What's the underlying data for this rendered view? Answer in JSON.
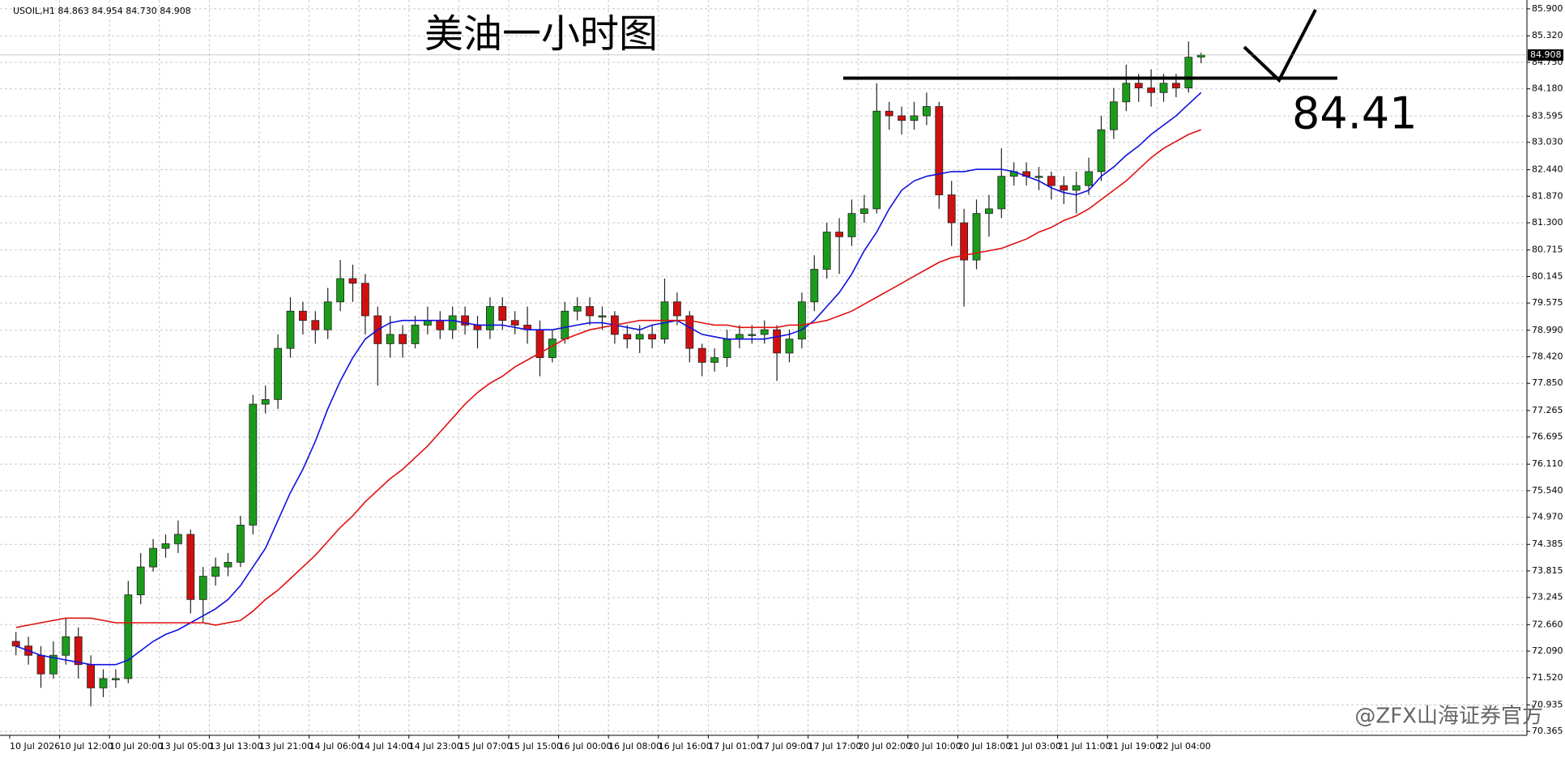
{
  "chart_data": {
    "type": "candlestick",
    "header": "USOIL,H1  84.863 84.954 84.730 84.908",
    "title": "美油一小时图",
    "watermark": "@ZFX山海证券官方",
    "level": 84.41,
    "current_price": 84.908,
    "up_color": "#1a9c1a",
    "down_color": "#d01010",
    "categories": [
      "10 Jul 2026",
      null,
      null,
      null,
      "10 Jul 12:00",
      null,
      null,
      null,
      "10 Jul 20:00",
      null,
      null,
      null,
      "13 Jul 05:00",
      null,
      null,
      null,
      "13 Jul 13:00",
      null,
      null,
      null,
      "13 Jul 21:00",
      null,
      null,
      null,
      "14 Jul 06:00",
      null,
      null,
      null,
      "14 Jul 14:00",
      null,
      null,
      null,
      "14 Jul 23:00",
      null,
      null,
      null,
      "15 Jul 07:00",
      null,
      null,
      null,
      "15 Jul 15:00",
      null,
      null,
      null,
      "16 Jul 00:00",
      null,
      null,
      null,
      "16 Jul 08:00",
      null,
      null,
      null,
      "16 Jul 16:00",
      null,
      null,
      null,
      "17 Jul 01:00",
      null,
      null,
      null,
      "17 Jul 09:00",
      null,
      null,
      null,
      "17 Jul 17:00",
      null,
      null,
      null,
      "20 Jul 02:00",
      null,
      null,
      null,
      "20 Jul 10:00",
      null,
      null,
      null,
      "20 Jul 18:00",
      null,
      null,
      null,
      "21 Jul 03:00",
      null,
      null,
      null,
      "21 Jul 11:00",
      null,
      null,
      null,
      "21 Jul 19:00",
      null,
      null,
      null,
      "22 Jul 04:00",
      null,
      null,
      null
    ],
    "open": [
      72.3,
      72.2,
      72.0,
      71.6,
      72.0,
      72.4,
      71.8,
      71.3,
      71.5,
      71.5,
      73.3,
      73.9,
      74.3,
      74.4,
      74.6,
      73.2,
      73.7,
      73.9,
      74.0,
      74.8,
      77.4,
      77.5,
      78.6,
      79.4,
      79.2,
      79.0,
      79.6,
      80.1,
      80.0,
      79.3,
      78.7,
      78.9,
      78.7,
      79.1,
      79.2,
      79.0,
      79.3,
      79.1,
      79.0,
      79.5,
      79.2,
      79.1,
      79.0,
      78.4,
      78.8,
      79.4,
      79.5,
      79.3,
      79.3,
      78.9,
      78.8,
      78.9,
      78.8,
      79.6,
      79.3,
      78.6,
      78.3,
      78.4,
      78.8,
      78.9,
      78.9,
      79.0,
      78.5,
      78.8,
      79.6,
      80.3,
      81.1,
      81.0,
      81.5,
      81.6,
      83.7,
      83.6,
      83.5,
      83.6,
      83.8,
      81.9,
      81.3,
      80.5,
      81.5,
      81.6,
      82.3,
      82.4,
      82.3,
      82.3,
      82.1,
      82.0,
      82.1,
      82.4,
      83.3,
      83.9,
      84.3,
      84.2,
      84.1,
      84.3,
      84.2,
      84.863
    ],
    "high": [
      72.5,
      72.4,
      72.2,
      72.3,
      72.8,
      72.6,
      72.0,
      71.7,
      71.7,
      73.6,
      74.2,
      74.5,
      74.6,
      74.9,
      74.7,
      73.9,
      74.1,
      74.2,
      75.0,
      77.6,
      77.8,
      78.9,
      79.7,
      79.6,
      79.4,
      79.9,
      80.5,
      80.4,
      80.2,
      79.5,
      79.3,
      79.1,
      79.3,
      79.5,
      79.4,
      79.5,
      79.5,
      79.3,
      79.7,
      79.7,
      79.4,
      79.5,
      79.2,
      79.0,
      79.6,
      79.7,
      79.7,
      79.5,
      79.4,
      79.1,
      79.1,
      79.1,
      80.1,
      79.8,
      79.4,
      78.7,
      78.6,
      79.0,
      79.1,
      79.1,
      79.2,
      79.1,
      79.0,
      79.8,
      80.6,
      81.3,
      81.4,
      81.8,
      81.9,
      84.3,
      83.9,
      83.8,
      83.9,
      84.1,
      83.9,
      82.2,
      81.6,
      81.8,
      81.9,
      82.9,
      82.6,
      82.6,
      82.5,
      82.4,
      82.3,
      82.4,
      82.7,
      83.6,
      84.2,
      84.7,
      84.5,
      84.6,
      84.5,
      84.5,
      85.2,
      84.954
    ],
    "low": [
      72.0,
      71.8,
      71.3,
      71.5,
      71.8,
      71.5,
      70.9,
      71.1,
      71.3,
      71.4,
      73.1,
      73.8,
      74.1,
      74.2,
      72.9,
      72.7,
      73.5,
      73.7,
      73.9,
      74.6,
      77.2,
      77.3,
      78.4,
      78.9,
      78.7,
      78.8,
      79.4,
      79.6,
      78.9,
      77.8,
      78.4,
      78.4,
      78.6,
      78.9,
      78.8,
      78.8,
      78.9,
      78.6,
      78.8,
      79.0,
      78.9,
      78.7,
      78.0,
      78.3,
      78.7,
      79.2,
      79.1,
      79.0,
      78.7,
      78.6,
      78.5,
      78.6,
      78.7,
      79.1,
      78.3,
      78.0,
      78.1,
      78.2,
      78.6,
      78.7,
      78.7,
      77.9,
      78.3,
      78.6,
      79.4,
      80.1,
      80.2,
      80.8,
      81.3,
      81.5,
      83.3,
      83.2,
      83.3,
      83.4,
      81.6,
      80.8,
      79.5,
      80.3,
      81.0,
      81.4,
      82.1,
      82.1,
      82.0,
      81.8,
      81.7,
      81.5,
      81.9,
      82.2,
      83.1,
      83.7,
      83.9,
      83.8,
      83.9,
      84.0,
      84.1,
      84.73
    ],
    "close": [
      72.2,
      72.0,
      71.6,
      72.0,
      72.4,
      71.8,
      71.3,
      71.5,
      71.5,
      73.3,
      73.9,
      74.3,
      74.4,
      74.6,
      73.2,
      73.7,
      73.9,
      74.0,
      74.8,
      77.4,
      77.5,
      78.6,
      79.4,
      79.2,
      79.0,
      79.6,
      80.1,
      80.0,
      79.3,
      78.7,
      78.9,
      78.7,
      79.1,
      79.2,
      79.0,
      79.3,
      79.1,
      79.0,
      79.5,
      79.2,
      79.1,
      79.0,
      78.4,
      78.8,
      79.4,
      79.5,
      79.3,
      79.3,
      78.9,
      78.8,
      78.9,
      78.8,
      79.6,
      79.3,
      78.6,
      78.3,
      78.4,
      78.8,
      78.9,
      78.9,
      79.0,
      78.5,
      78.8,
      79.6,
      80.3,
      81.1,
      81.0,
      81.5,
      81.6,
      83.7,
      83.6,
      83.5,
      83.6,
      83.8,
      81.9,
      81.3,
      80.5,
      81.5,
      81.6,
      82.3,
      82.4,
      82.3,
      82.3,
      82.1,
      82.0,
      82.1,
      82.4,
      83.3,
      83.9,
      84.3,
      84.2,
      84.1,
      84.3,
      84.2,
      84.86,
      84.908
    ],
    "series": [
      {
        "color": "#1010e0",
        "values": [
          72.2,
          72.1,
          72.0,
          71.95,
          71.9,
          71.85,
          71.8,
          71.8,
          71.8,
          71.9,
          72.1,
          72.3,
          72.45,
          72.55,
          72.7,
          72.85,
          73.0,
          73.2,
          73.5,
          73.9,
          74.3,
          74.9,
          75.5,
          76.0,
          76.6,
          77.3,
          77.9,
          78.4,
          78.8,
          79.0,
          79.15,
          79.2,
          79.2,
          79.2,
          79.2,
          79.2,
          79.15,
          79.1,
          79.1,
          79.1,
          79.05,
          79.0,
          79.0,
          79.0,
          79.05,
          79.1,
          79.15,
          79.15,
          79.1,
          79.05,
          79.0,
          79.1,
          79.15,
          79.2,
          79.05,
          78.9,
          78.85,
          78.8,
          78.8,
          78.8,
          78.8,
          78.85,
          78.9,
          79.0,
          79.2,
          79.5,
          79.8,
          80.2,
          80.7,
          81.1,
          81.6,
          82.0,
          82.2,
          82.3,
          82.35,
          82.4,
          82.4,
          82.45,
          82.45,
          82.45,
          82.4,
          82.3,
          82.2,
          82.05,
          81.95,
          81.9,
          82.0,
          82.3,
          82.5,
          82.75,
          82.95,
          83.2,
          83.4,
          83.6,
          83.85,
          84.1
        ]
      },
      {
        "color": "#e01010",
        "values": [
          72.6,
          72.65,
          72.7,
          72.75,
          72.8,
          72.8,
          72.8,
          72.75,
          72.7,
          72.7,
          72.7,
          72.7,
          72.7,
          72.7,
          72.7,
          72.7,
          72.65,
          72.7,
          72.75,
          72.95,
          73.2,
          73.4,
          73.65,
          73.9,
          74.15,
          74.45,
          74.75,
          75.0,
          75.3,
          75.55,
          75.8,
          76.0,
          76.25,
          76.5,
          76.8,
          77.1,
          77.4,
          77.65,
          77.85,
          78.0,
          78.2,
          78.35,
          78.5,
          78.65,
          78.8,
          78.9,
          79.0,
          79.05,
          79.1,
          79.15,
          79.2,
          79.2,
          79.2,
          79.2,
          79.2,
          79.15,
          79.1,
          79.1,
          79.05,
          79.05,
          79.05,
          79.05,
          79.1,
          79.1,
          79.15,
          79.2,
          79.3,
          79.4,
          79.55,
          79.7,
          79.85,
          80.0,
          80.15,
          80.3,
          80.45,
          80.55,
          80.6,
          80.65,
          80.7,
          80.75,
          80.85,
          80.95,
          81.1,
          81.2,
          81.35,
          81.45,
          81.6,
          81.8,
          82.0,
          82.2,
          82.45,
          82.7,
          82.9,
          83.05,
          83.2,
          83.3
        ]
      }
    ],
    "ylim": [
      70.28,
      86.09
    ],
    "yticks": [
      {
        "value": 85.9,
        "label": "85.900"
      },
      {
        "value": 85.32,
        "label": "85.320"
      },
      {
        "value": 84.75,
        "label": "84.750"
      },
      {
        "value": 84.18,
        "label": "84.180"
      },
      83.595,
      {
        "value": 83.03,
        "label": "83.030"
      },
      {
        "value": 82.44,
        "label": "82.440"
      },
      {
        "value": 81.87,
        "label": "81.870"
      },
      {
        "value": 81.3,
        "label": "81.300"
      },
      80.715,
      80.145,
      79.575,
      {
        "value": 78.99,
        "label": "78.990"
      },
      {
        "value": 78.42,
        "label": "78.420"
      },
      {
        "value": 77.85,
        "label": "77.850"
      },
      77.265,
      76.695,
      {
        "value": 76.11,
        "label": "76.110"
      },
      {
        "value": 75.54,
        "label": "75.540"
      },
      {
        "value": 74.97,
        "label": "74.970"
      },
      74.385,
      73.815,
      73.245,
      {
        "value": 72.66,
        "label": "72.660"
      },
      {
        "value": 72.09,
        "label": "72.090"
      },
      {
        "value": 71.52,
        "label": "71.520"
      },
      70.935,
      70.365
    ],
    "grid": true
  }
}
